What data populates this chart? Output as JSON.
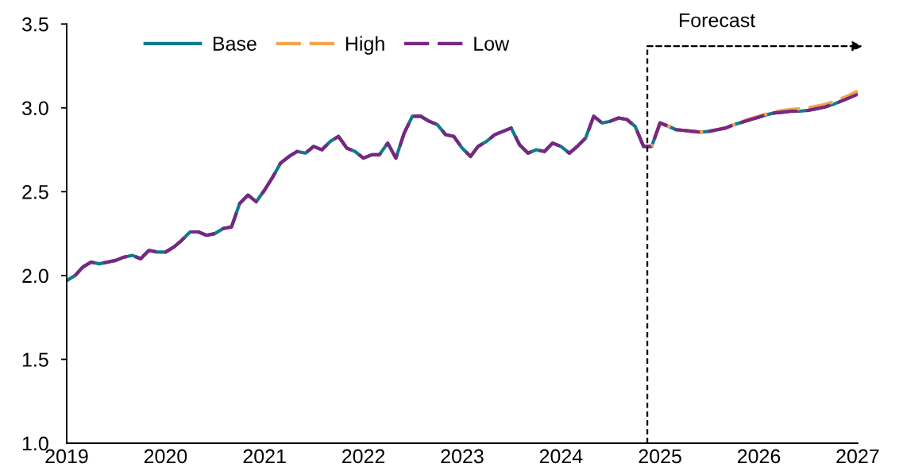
{
  "chart_data": {
    "type": "line",
    "x": [
      "2019-01",
      "2019-02",
      "2019-03",
      "2019-04",
      "2019-05",
      "2019-06",
      "2019-07",
      "2019-08",
      "2019-09",
      "2019-10",
      "2019-11",
      "2019-12",
      "2020-01",
      "2020-02",
      "2020-03",
      "2020-04",
      "2020-05",
      "2020-06",
      "2020-07",
      "2020-08",
      "2020-09",
      "2020-10",
      "2020-11",
      "2020-12",
      "2021-01",
      "2021-02",
      "2021-03",
      "2021-04",
      "2021-05",
      "2021-06",
      "2021-07",
      "2021-08",
      "2021-09",
      "2021-10",
      "2021-11",
      "2021-12",
      "2022-01",
      "2022-02",
      "2022-03",
      "2022-04",
      "2022-05",
      "2022-06",
      "2022-07",
      "2022-08",
      "2022-09",
      "2022-10",
      "2022-11",
      "2022-12",
      "2023-01",
      "2023-02",
      "2023-03",
      "2023-04",
      "2023-05",
      "2023-06",
      "2023-07",
      "2023-08",
      "2023-09",
      "2023-10",
      "2023-11",
      "2023-12",
      "2024-01",
      "2024-02",
      "2024-03",
      "2024-04",
      "2024-05",
      "2024-06",
      "2024-07",
      "2024-08",
      "2024-09",
      "2024-10",
      "2024-11",
      "2024-12",
      "2025-01",
      "2025-02",
      "2025-03",
      "2025-04",
      "2025-05",
      "2025-06",
      "2025-07",
      "2025-08",
      "2025-09",
      "2025-10",
      "2025-11",
      "2025-12",
      "2026-01",
      "2026-02",
      "2026-03",
      "2026-04",
      "2026-05",
      "2026-06",
      "2026-07",
      "2026-08",
      "2026-09",
      "2026-10",
      "2026-11",
      "2026-12",
      "2027-01"
    ],
    "series": [
      {
        "name": "Base",
        "color": "#0f7b8c",
        "line_style": "solid",
        "values": [
          1.97,
          2.0,
          2.05,
          2.08,
          2.07,
          2.08,
          2.09,
          2.11,
          2.12,
          2.1,
          2.15,
          2.14,
          2.14,
          2.17,
          2.21,
          2.26,
          2.26,
          2.24,
          2.25,
          2.28,
          2.29,
          2.43,
          2.48,
          2.44,
          2.51,
          2.59,
          2.67,
          2.71,
          2.74,
          2.73,
          2.77,
          2.75,
          2.8,
          2.83,
          2.76,
          2.74,
          2.7,
          2.72,
          2.72,
          2.79,
          2.7,
          2.85,
          2.95,
          2.95,
          2.92,
          2.9,
          2.84,
          2.83,
          2.76,
          2.71,
          2.77,
          2.8,
          2.84,
          2.86,
          2.88,
          2.78,
          2.73,
          2.75,
          2.74,
          2.79,
          2.77,
          2.73,
          2.77,
          2.82,
          2.95,
          2.91,
          2.92,
          2.94,
          2.93,
          2.89,
          2.77,
          2.77,
          2.91,
          2.89,
          2.87,
          2.865,
          2.86,
          2.855,
          2.86,
          2.87,
          2.88,
          2.9,
          2.915,
          2.93,
          2.945,
          2.96,
          2.97,
          2.975,
          2.98,
          2.98,
          2.985,
          2.995,
          3.005,
          3.02,
          3.04,
          3.06,
          3.09
        ]
      },
      {
        "name": "High",
        "color": "#f2a54a",
        "line_style": "dashed",
        "values": [
          null,
          null,
          null,
          null,
          null,
          null,
          null,
          null,
          null,
          null,
          null,
          null,
          null,
          null,
          null,
          null,
          null,
          null,
          null,
          null,
          null,
          null,
          null,
          null,
          null,
          null,
          null,
          null,
          null,
          null,
          null,
          null,
          null,
          null,
          null,
          null,
          null,
          null,
          null,
          null,
          null,
          null,
          null,
          null,
          null,
          null,
          null,
          null,
          null,
          null,
          null,
          null,
          null,
          null,
          null,
          null,
          null,
          null,
          null,
          null,
          null,
          null,
          null,
          null,
          null,
          null,
          null,
          null,
          null,
          null,
          null,
          2.77,
          2.91,
          2.89,
          2.87,
          2.865,
          2.86,
          2.855,
          2.86,
          2.87,
          2.88,
          2.9,
          2.92,
          2.935,
          2.95,
          2.965,
          2.975,
          2.985,
          2.99,
          2.995,
          3.0,
          3.01,
          3.02,
          3.035,
          3.055,
          3.075,
          3.1
        ]
      },
      {
        "name": "Low",
        "color": "#7b2682",
        "line_style": "dashed",
        "values": [
          1.97,
          2.0,
          2.05,
          2.08,
          2.07,
          2.08,
          2.09,
          2.11,
          2.12,
          2.1,
          2.15,
          2.14,
          2.14,
          2.17,
          2.21,
          2.26,
          2.26,
          2.24,
          2.25,
          2.28,
          2.29,
          2.43,
          2.48,
          2.44,
          2.51,
          2.59,
          2.67,
          2.71,
          2.74,
          2.73,
          2.77,
          2.75,
          2.8,
          2.83,
          2.76,
          2.74,
          2.7,
          2.72,
          2.72,
          2.79,
          2.7,
          2.85,
          2.95,
          2.95,
          2.92,
          2.9,
          2.84,
          2.83,
          2.76,
          2.71,
          2.77,
          2.8,
          2.84,
          2.86,
          2.88,
          2.78,
          2.73,
          2.75,
          2.74,
          2.79,
          2.77,
          2.73,
          2.77,
          2.82,
          2.95,
          2.91,
          2.92,
          2.94,
          2.93,
          2.89,
          2.77,
          2.77,
          2.91,
          2.89,
          2.87,
          2.865,
          2.86,
          2.855,
          2.86,
          2.87,
          2.88,
          2.9,
          2.915,
          2.93,
          2.945,
          2.96,
          2.97,
          2.975,
          2.98,
          2.98,
          2.985,
          2.995,
          3.005,
          3.02,
          3.04,
          3.06,
          3.08
        ]
      }
    ],
    "xlim": [
      "2019",
      "2027"
    ],
    "xticks": [
      "2019",
      "2020",
      "2021",
      "2022",
      "2023",
      "2024",
      "2025",
      "2026",
      "2027"
    ],
    "ylim": [
      1.0,
      3.5
    ],
    "yticks": [
      {
        "value": 1.0,
        "label": "1.0"
      },
      1.5,
      {
        "value": 2.0,
        "label": "2.0"
      },
      2.5,
      {
        "value": 3.0,
        "label": "3.0"
      },
      3.5
    ],
    "ref_lines": [
      {
        "axis": "x",
        "value": "2024-11-15",
        "label": "Forecast",
        "color": "#000000",
        "line_style": "dashed"
      }
    ],
    "legend": "top left"
  }
}
